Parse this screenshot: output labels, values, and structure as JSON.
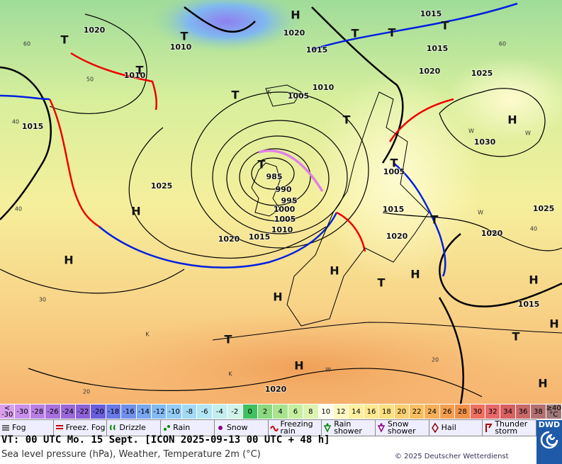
{
  "map": {
    "pressure_labels": [
      "1020",
      "1010",
      "1020",
      "1015",
      "1015",
      "1015",
      "1010",
      "1020",
      "1025",
      "1010",
      "1005",
      "1015",
      "1030",
      "1025",
      "985",
      "1005",
      "990",
      "995",
      "1000",
      "1005",
      "1015",
      "1010",
      "1020",
      "1015",
      "1020",
      "1020",
      "1025",
      "1015",
      "1020"
    ],
    "centers": [
      "H",
      "T",
      "T",
      "T",
      "T",
      "T",
      "T",
      "T",
      "T",
      "H",
      "T",
      "T",
      "H",
      "H",
      "T",
      "H",
      "H",
      "H",
      "T",
      "H",
      "T",
      "H",
      "H",
      "T",
      "H"
    ],
    "temperature_labels": [
      "60",
      "50",
      "40",
      "40",
      "30",
      "20",
      "60",
      "40",
      "20",
      "K",
      "K",
      "W",
      "W",
      "W",
      "W",
      "K"
    ]
  },
  "color_scale": {
    "labels": [
      "< -30",
      "-30",
      "-28",
      "-26",
      "-24",
      "-22",
      "-20",
      "-18",
      "-16",
      "-14",
      "-12",
      "-10",
      "-8",
      "-6",
      "-4",
      "-2",
      "0",
      "2",
      "4",
      "6",
      "8",
      "10",
      "12",
      "14",
      "16",
      "18",
      "20",
      "22",
      "24",
      "26",
      "28",
      "30",
      "32",
      "34",
      "36",
      "38",
      "≥40 °C"
    ],
    "colors": [
      "#d9a0f0",
      "#c890ec",
      "#b880e6",
      "#a870e0",
      "#9a68dc",
      "#8c60d8",
      "#6a5ee0",
      "#6a78e8",
      "#7090ee",
      "#78a6f2",
      "#84baf4",
      "#92ccf6",
      "#a2daf6",
      "#b2e6f4",
      "#c2eef0",
      "#d0f4ea",
      "#40c060",
      "#8ad880",
      "#a8e490",
      "#c4eea0",
      "#dcf4b0",
      "#fffff0",
      "#fff8c0",
      "#fff0a0",
      "#ffe890",
      "#fde080",
      "#fbd070",
      "#f8c060",
      "#f6b058",
      "#f4a050",
      "#f29048",
      "#ee7060",
      "#e86868",
      "#d86060",
      "#c86868",
      "#b47070",
      "#a07878"
    ]
  },
  "legend": [
    "Fog",
    "Freez. Fog",
    "Drizzle",
    "Rain",
    "Snow",
    "Freezing rain",
    "Rain shower",
    "Snow shower",
    "Hail",
    "Thunder storm"
  ],
  "footer": {
    "valid_time": "VT: 00 UTC Mo.  15 Sept. [ICON 2025-09-13  00 UTC + 48 h]",
    "description": "Sea level pressure (hPa), Weather, Temperature 2m (°C)",
    "copyright": "© 2025 Deutscher Wetterdienst",
    "logo": "DWD"
  }
}
